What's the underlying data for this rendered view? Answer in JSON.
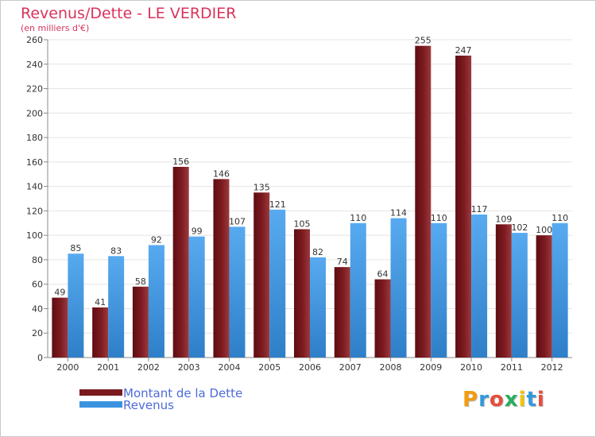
{
  "title": "Revenus/Dette - LE VERDIER",
  "subtitle": "(en milliers d'€)",
  "brand": {
    "text": "Proxiti",
    "letter_colors": [
      "#f39c12",
      "#3498db",
      "#e74c3c",
      "#27ae60",
      "#f1c40f",
      "#3498db",
      "#e74c3c"
    ]
  },
  "colors": {
    "dette": "#7a1a1f",
    "revenus": "#3b93e0",
    "title": "#d8335b",
    "legend_text": "#4d6bd8"
  },
  "chart_data": {
    "type": "bar",
    "title": "Revenus/Dette - LE VERDIER",
    "subtitle": "(en milliers d'€)",
    "categories": [
      "2000",
      "2001",
      "2002",
      "2003",
      "2004",
      "2005",
      "2006",
      "2007",
      "2008",
      "2009",
      "2010",
      "2011",
      "2012"
    ],
    "series": [
      {
        "name": "Montant de la Dette",
        "values": [
          49,
          41,
          58,
          156,
          146,
          135,
          105,
          74,
          64,
          255,
          247,
          109,
          100
        ]
      },
      {
        "name": "Revenus",
        "values": [
          85,
          83,
          92,
          99,
          107,
          121,
          82,
          110,
          114,
          110,
          117,
          102,
          110
        ]
      }
    ],
    "ylim": [
      0,
      260
    ],
    "yticks": [
      0,
      20,
      40,
      60,
      80,
      100,
      120,
      140,
      160,
      180,
      200,
      220,
      240,
      260
    ],
    "grid": true,
    "legend": "bottom-left"
  }
}
